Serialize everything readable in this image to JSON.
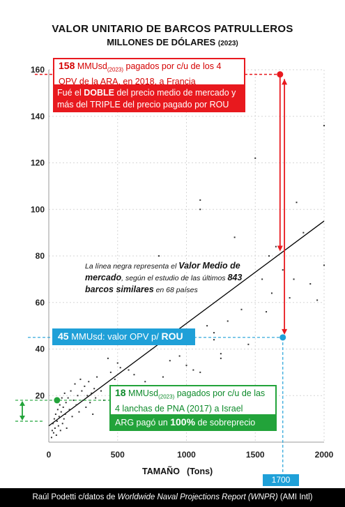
{
  "chart_data": {
    "type": "scatter",
    "title": "VALOR UNITARIO DE BARCOS PATRULLEROS",
    "subtitle": "MILLONES DE DÓLARES",
    "subtitle_year": "(2023)",
    "xlabel": "TAMAÑO",
    "xlabel_unit": "(Tons)",
    "xlim": [
      0,
      2000
    ],
    "ylim": [
      0,
      160
    ],
    "x_ticks": [
      0,
      500,
      1000,
      1500,
      2000
    ],
    "y_ticks": [
      20,
      40,
      60,
      80,
      100,
      120,
      140,
      160
    ],
    "trend_line": [
      [
        0,
        7
      ],
      [
        2000,
        95
      ]
    ],
    "points": [
      [
        20,
        2
      ],
      [
        25,
        5
      ],
      [
        30,
        8
      ],
      [
        35,
        4
      ],
      [
        40,
        10
      ],
      [
        45,
        6
      ],
      [
        50,
        12
      ],
      [
        55,
        3
      ],
      [
        60,
        9
      ],
      [
        65,
        14
      ],
      [
        70,
        7
      ],
      [
        75,
        11
      ],
      [
        80,
        16
      ],
      [
        85,
        5
      ],
      [
        90,
        13
      ],
      [
        95,
        19
      ],
      [
        100,
        8
      ],
      [
        105,
        15
      ],
      [
        110,
        10
      ],
      [
        115,
        21
      ],
      [
        120,
        12
      ],
      [
        125,
        17
      ],
      [
        130,
        6
      ],
      [
        140,
        19
      ],
      [
        150,
        14
      ],
      [
        160,
        22
      ],
      [
        170,
        11
      ],
      [
        180,
        18
      ],
      [
        190,
        25
      ],
      [
        200,
        16
      ],
      [
        210,
        20
      ],
      [
        220,
        13
      ],
      [
        230,
        27
      ],
      [
        240,
        22
      ],
      [
        250,
        18
      ],
      [
        260,
        24
      ],
      [
        270,
        15
      ],
      [
        280,
        20
      ],
      [
        290,
        26
      ],
      [
        300,
        17
      ],
      [
        310,
        21
      ],
      [
        320,
        12
      ],
      [
        330,
        23
      ],
      [
        340,
        19
      ],
      [
        350,
        28
      ],
      [
        380,
        22
      ],
      [
        400,
        18
      ],
      [
        430,
        36
      ],
      [
        450,
        30
      ],
      [
        480,
        27
      ],
      [
        500,
        34
      ],
      [
        520,
        32
      ],
      [
        540,
        24
      ],
      [
        580,
        31
      ],
      [
        620,
        29
      ],
      [
        700,
        26
      ],
      [
        800,
        80
      ],
      [
        830,
        28
      ],
      [
        880,
        35
      ],
      [
        900,
        24
      ],
      [
        950,
        37
      ],
      [
        1000,
        33
      ],
      [
        1050,
        31
      ],
      [
        1100,
        30
      ],
      [
        1100,
        104
      ],
      [
        1100,
        100
      ],
      [
        1150,
        50
      ],
      [
        1200,
        44
      ],
      [
        1200,
        47
      ],
      [
        1250,
        36
      ],
      [
        1250,
        38
      ],
      [
        1300,
        52
      ],
      [
        1350,
        88
      ],
      [
        1400,
        57
      ],
      [
        1450,
        42
      ],
      [
        1500,
        122
      ],
      [
        1550,
        70
      ],
      [
        1580,
        56
      ],
      [
        1600,
        80
      ],
      [
        1620,
        64
      ],
      [
        1650,
        84
      ],
      [
        1700,
        74
      ],
      [
        1750,
        62
      ],
      [
        1780,
        70
      ],
      [
        1800,
        103
      ],
      [
        1850,
        90
      ],
      [
        1900,
        68
      ],
      [
        1950,
        61
      ],
      [
        2000,
        136
      ],
      [
        2000,
        76
      ]
    ],
    "highlights": [
      {
        "x": 1680,
        "y": 158,
        "color": "#e8191e"
      },
      {
        "x": 1700,
        "y": 45,
        "color": "#1fa0d8"
      },
      {
        "x": 60,
        "y": 18,
        "color": "#22a33a"
      }
    ],
    "markers": {
      "x_value": "1700"
    },
    "footer_pre": "Raúl Podetti c/datos de ",
    "footer_italic": "Worldwide Naval Projections Report (WNPR)",
    "footer_post": " (AMI Intl)"
  },
  "annotations": {
    "red_value": "158",
    "red_unit": " MMUsd",
    "red_sub": "(2023)",
    "red_text": " pagados por c/u de los 4 OPV de la ARA, en 2018, a Francia",
    "red_bot_a": "Fué el ",
    "red_bot_b": "DOBLE",
    "red_bot_c": " del precio medio de mercado y más del TRIPLE del precio pagado por ROU",
    "blue_value": "45",
    "blue_text": " MMUsd: valor OPV p/ ",
    "blue_bold": "ROU",
    "green_value": "18",
    "green_unit": " MMUsd",
    "green_sub": "(2023)",
    "green_text": " pagados por c/u de las 4 lanchas de PNA (2017) a Israel",
    "green_bot_a": "ARG pagó un ",
    "green_bot_b": "100%",
    "green_bot_c": " de sobreprecio",
    "note_a": "La línea negra representa el ",
    "note_b": "Valor Medio de mercado",
    "note_c": ", según el estudio de las últimos ",
    "note_d": "843 barcos similares",
    "note_e": " en 68 países"
  }
}
